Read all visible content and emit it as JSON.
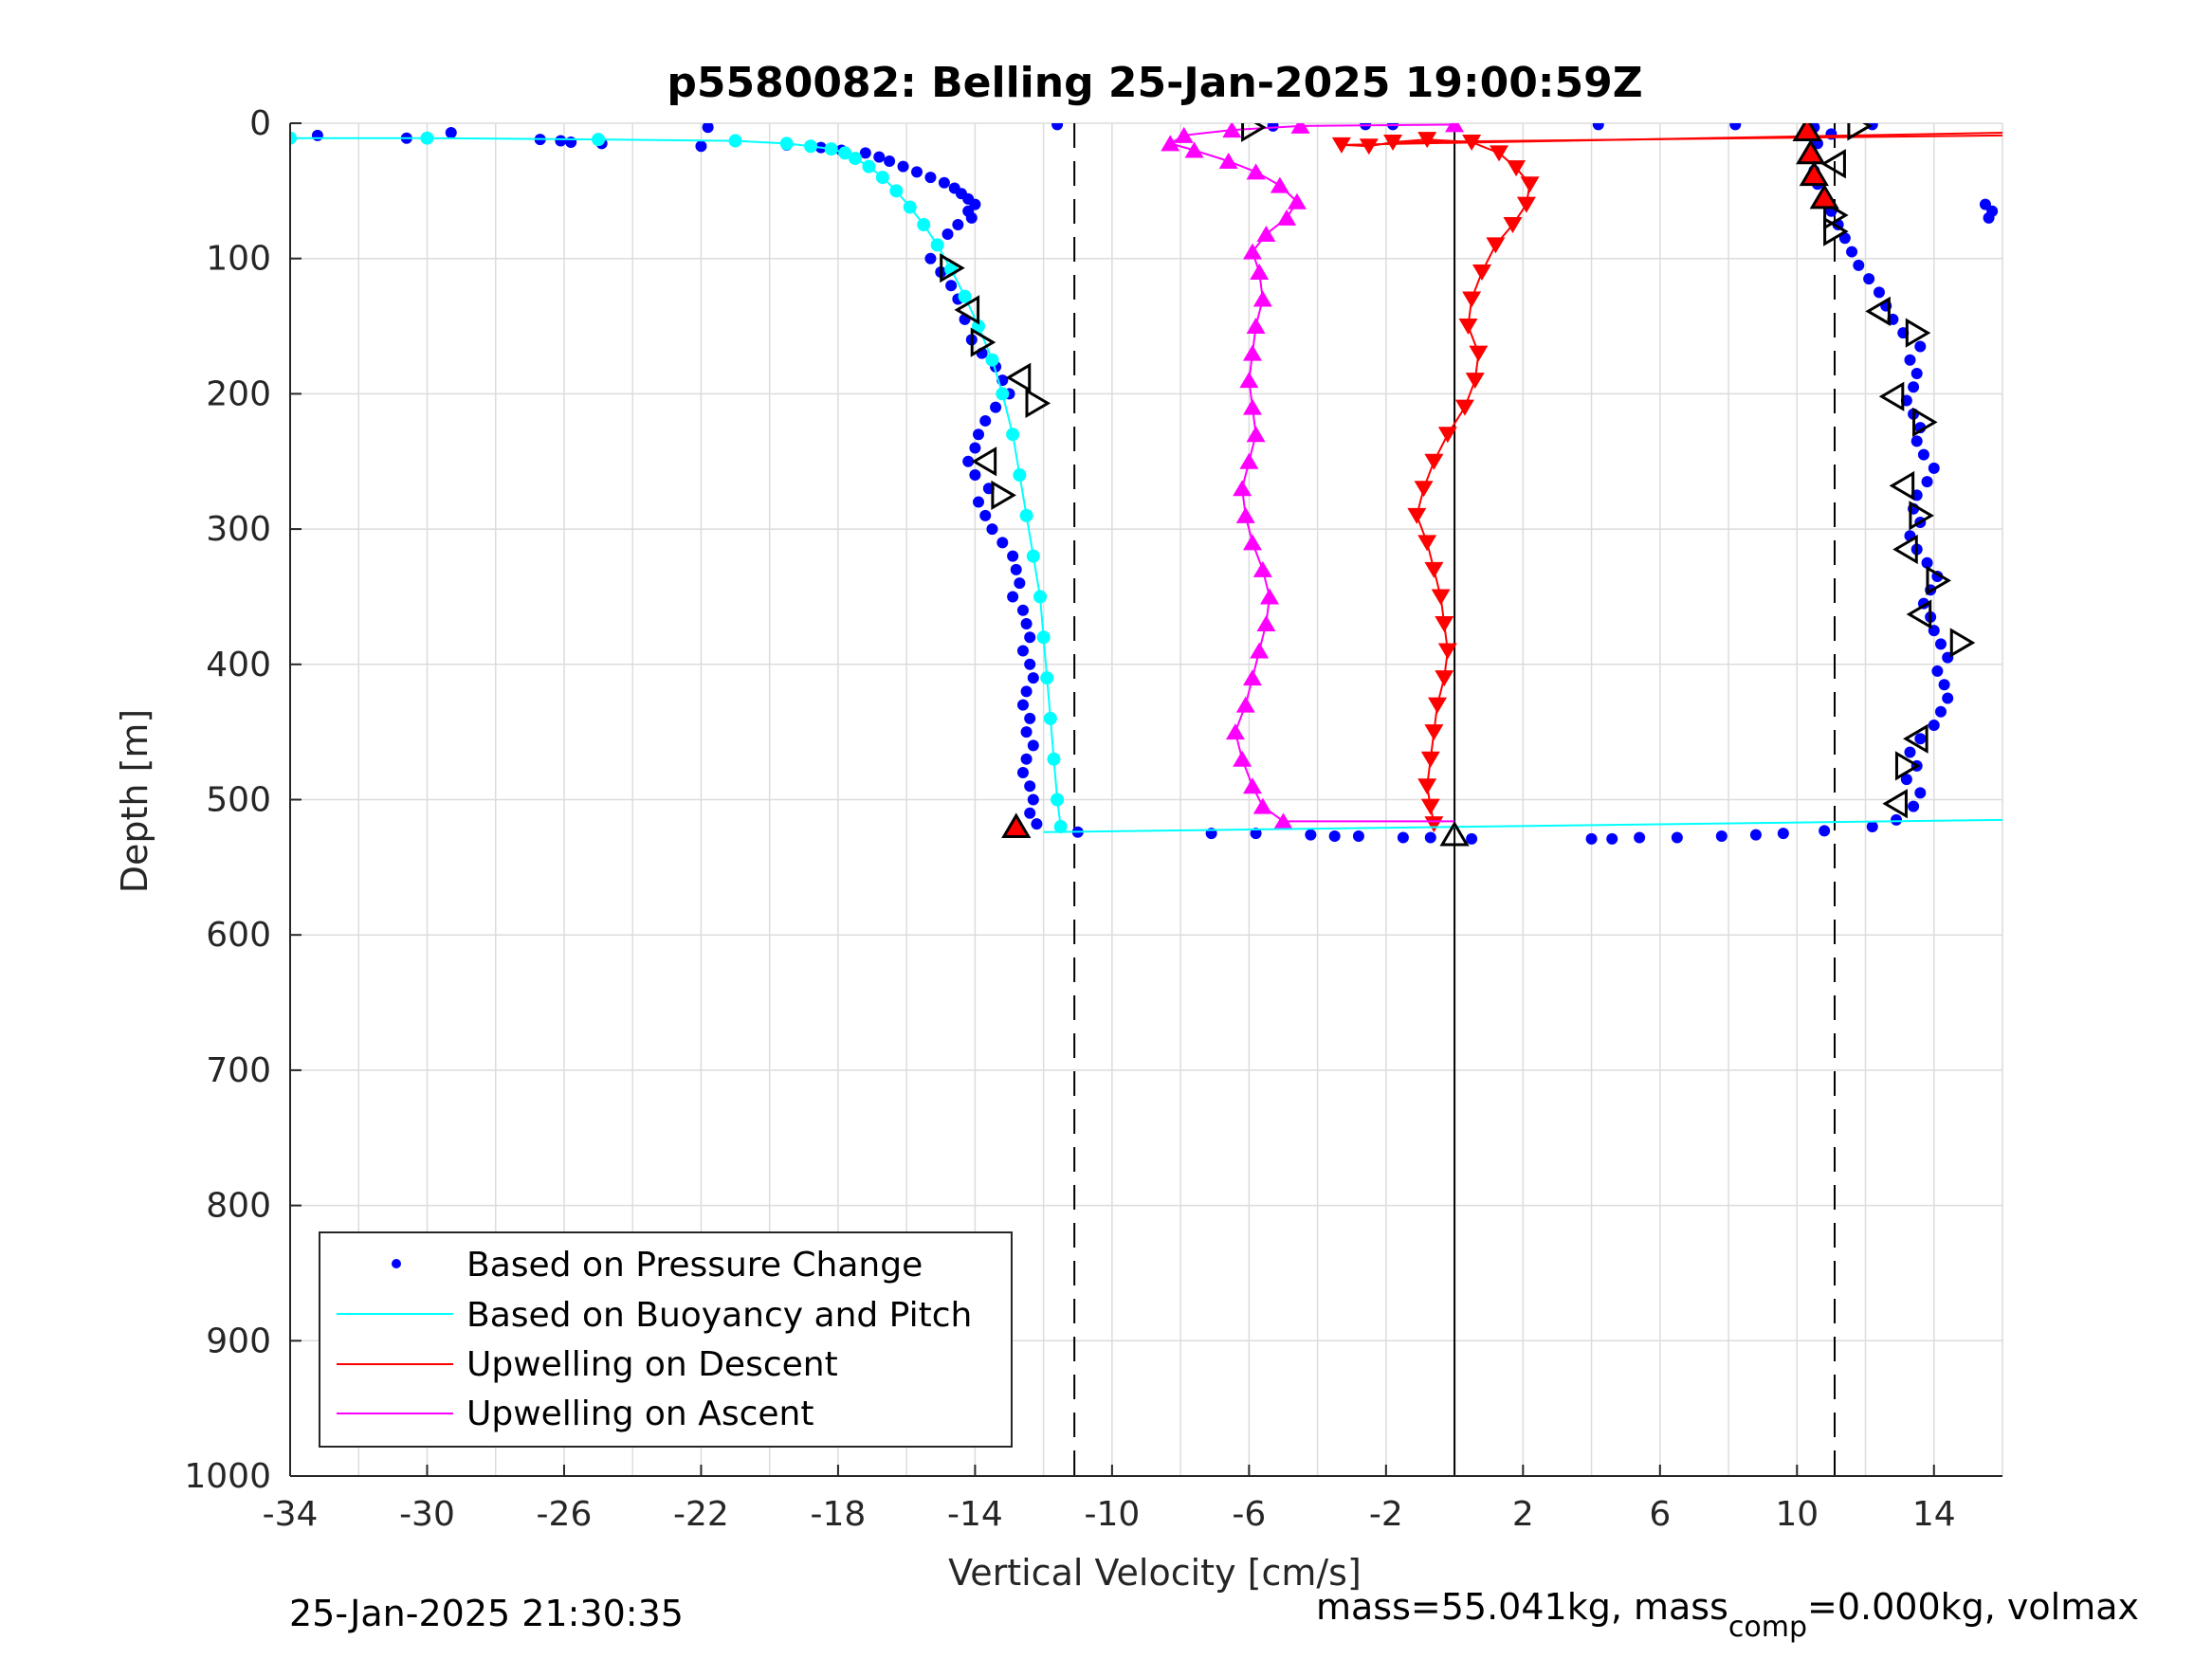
{
  "chart_data": {
    "type": "scatter",
    "title": "p5580082: Belling 25-Jan-2025 19:00:59Z",
    "xlabel": "Vertical Velocity [cm/s]",
    "ylabel": "Depth [m]",
    "xlim": [
      -34,
      16
    ],
    "ylim": [
      0,
      1000
    ],
    "y_reversed": true,
    "xticks": [
      -34,
      -30,
      -26,
      -22,
      -18,
      -14,
      -10,
      -6,
      -2,
      2,
      6,
      10,
      14
    ],
    "yticks": [
      0,
      100,
      200,
      300,
      400,
      500,
      600,
      700,
      800,
      900,
      1000
    ],
    "grid": true,
    "legend_position": "bottom-left",
    "legend": [
      {
        "label": "Based on Pressure Change",
        "color": "#0000ff",
        "marker": "dot"
      },
      {
        "label": "Based on Buoyancy and Pitch",
        "color": "#00ffff",
        "marker": "line"
      },
      {
        "label": "Upwelling on Descent",
        "color": "#ff0000",
        "marker": "line"
      },
      {
        "label": "Upwelling on Ascent",
        "color": "#ff00ff",
        "marker": "line"
      }
    ],
    "reference_lines": {
      "dashed_x": [
        -11.1,
        11.1
      ],
      "solid_x": [
        0
      ]
    },
    "series": [
      {
        "name": "Based on Pressure Change (descent)",
        "color": "#0000ff",
        "marker": "dot",
        "points": [
          [
            -33.2,
            9
          ],
          [
            -30.6,
            11
          ],
          [
            -29.3,
            7
          ],
          [
            -26.7,
            12
          ],
          [
            -26.1,
            13
          ],
          [
            -25.8,
            14
          ],
          [
            -24.9,
            15
          ],
          [
            -22.0,
            17
          ],
          [
            -21.8,
            3
          ],
          [
            -11.6,
            1
          ],
          [
            -19.5,
            16
          ],
          [
            -18.5,
            18
          ],
          [
            -17.9,
            20
          ],
          [
            -17.2,
            22
          ],
          [
            -16.8,
            25
          ],
          [
            -16.5,
            28
          ],
          [
            -16.1,
            32
          ],
          [
            -15.7,
            36
          ],
          [
            -15.3,
            40
          ],
          [
            -14.9,
            44
          ],
          [
            -14.6,
            48
          ],
          [
            -14.4,
            52
          ],
          [
            -14.2,
            56
          ],
          [
            -14.0,
            60
          ],
          [
            -14.2,
            65
          ],
          [
            -14.1,
            70
          ],
          [
            -14.5,
            75
          ],
          [
            -14.8,
            82
          ],
          [
            -15.1,
            90
          ],
          [
            -15.3,
            100
          ],
          [
            -15.0,
            110
          ],
          [
            -14.7,
            120
          ],
          [
            -14.5,
            130
          ],
          [
            -14.3,
            145
          ],
          [
            -14.1,
            160
          ],
          [
            -13.8,
            170
          ],
          [
            -13.4,
            180
          ],
          [
            -13.2,
            190
          ],
          [
            -13.0,
            200
          ],
          [
            -13.4,
            210
          ],
          [
            -13.7,
            220
          ],
          [
            -13.9,
            230
          ],
          [
            -14.0,
            240
          ],
          [
            -14.2,
            250
          ],
          [
            -14.0,
            260
          ],
          [
            -13.6,
            270
          ],
          [
            -13.9,
            280
          ],
          [
            -13.7,
            290
          ],
          [
            -13.5,
            300
          ],
          [
            -13.2,
            310
          ],
          [
            -12.9,
            320
          ],
          [
            -12.8,
            330
          ],
          [
            -12.7,
            340
          ],
          [
            -12.9,
            350
          ],
          [
            -12.6,
            360
          ],
          [
            -12.5,
            370
          ],
          [
            -12.4,
            380
          ],
          [
            -12.6,
            390
          ],
          [
            -12.4,
            400
          ],
          [
            -12.3,
            410
          ],
          [
            -12.5,
            420
          ],
          [
            -12.6,
            430
          ],
          [
            -12.4,
            440
          ],
          [
            -12.5,
            450
          ],
          [
            -12.3,
            460
          ],
          [
            -12.5,
            470
          ],
          [
            -12.6,
            480
          ],
          [
            -12.4,
            490
          ],
          [
            -12.3,
            500
          ],
          [
            -12.4,
            510
          ],
          [
            -12.2,
            518
          ],
          [
            -11.0,
            524
          ]
        ]
      },
      {
        "name": "Based on Pressure Change (ascent)",
        "color": "#0000ff",
        "marker": "dot",
        "points": [
          [
            -7.1,
            525
          ],
          [
            -5.8,
            525
          ],
          [
            -4.2,
            526
          ],
          [
            -3.5,
            527
          ],
          [
            -2.8,
            527
          ],
          [
            -1.5,
            528
          ],
          [
            -0.7,
            528
          ],
          [
            0.5,
            529
          ],
          [
            4.0,
            529
          ],
          [
            4.6,
            529
          ],
          [
            5.4,
            528
          ],
          [
            6.5,
            528
          ],
          [
            7.8,
            527
          ],
          [
            8.8,
            526
          ],
          [
            9.6,
            525
          ],
          [
            10.8,
            523
          ],
          [
            12.2,
            520
          ],
          [
            12.9,
            515
          ],
          [
            13.4,
            505
          ],
          [
            13.6,
            495
          ],
          [
            13.2,
            485
          ],
          [
            13.5,
            475
          ],
          [
            13.3,
            465
          ],
          [
            13.6,
            455
          ],
          [
            14.0,
            445
          ],
          [
            14.2,
            435
          ],
          [
            14.4,
            425
          ],
          [
            14.3,
            415
          ],
          [
            14.1,
            405
          ],
          [
            14.4,
            395
          ],
          [
            14.2,
            385
          ],
          [
            14.0,
            375
          ],
          [
            13.9,
            365
          ],
          [
            13.7,
            355
          ],
          [
            13.9,
            345
          ],
          [
            14.1,
            335
          ],
          [
            13.8,
            325
          ],
          [
            13.5,
            315
          ],
          [
            13.3,
            305
          ],
          [
            13.6,
            295
          ],
          [
            13.4,
            285
          ],
          [
            13.5,
            275
          ],
          [
            13.8,
            265
          ],
          [
            14.0,
            255
          ],
          [
            13.7,
            245
          ],
          [
            13.5,
            235
          ],
          [
            13.6,
            225
          ],
          [
            13.4,
            215
          ],
          [
            13.2,
            205
          ],
          [
            13.4,
            195
          ],
          [
            13.5,
            185
          ],
          [
            13.3,
            175
          ],
          [
            13.6,
            165
          ],
          [
            13.1,
            155
          ],
          [
            12.8,
            145
          ],
          [
            12.6,
            135
          ],
          [
            12.4,
            125
          ],
          [
            12.1,
            115
          ],
          [
            11.8,
            105
          ],
          [
            11.6,
            95
          ],
          [
            11.4,
            85
          ],
          [
            11.2,
            75
          ],
          [
            11.0,
            65
          ],
          [
            10.8,
            55
          ],
          [
            10.6,
            45
          ],
          [
            10.5,
            35
          ],
          [
            10.4,
            25
          ],
          [
            10.6,
            15
          ],
          [
            11.0,
            8
          ],
          [
            10.5,
            3
          ],
          [
            12.2,
            1
          ],
          [
            8.2,
            1
          ],
          [
            4.2,
            1
          ],
          [
            -1.8,
            1
          ],
          [
            -2.6,
            1
          ],
          [
            -5.3,
            2
          ],
          [
            15.5,
            60
          ],
          [
            15.7,
            65
          ],
          [
            15.6,
            70
          ]
        ]
      },
      {
        "name": "Based on Buoyancy and Pitch",
        "color": "#00ffff",
        "marker": "dot",
        "points": [
          [
            -34,
            11
          ],
          [
            -30,
            11
          ],
          [
            -25,
            12
          ],
          [
            -21,
            13
          ],
          [
            -19.5,
            15
          ],
          [
            -18.8,
            17
          ],
          [
            -18.2,
            19
          ],
          [
            -17.8,
            22
          ],
          [
            -17.5,
            26
          ],
          [
            -17.1,
            32
          ],
          [
            -16.7,
            40
          ],
          [
            -16.3,
            50
          ],
          [
            -15.9,
            62
          ],
          [
            -15.5,
            75
          ],
          [
            -15.1,
            90
          ],
          [
            -14.7,
            108
          ],
          [
            -14.3,
            128
          ],
          [
            -13.9,
            150
          ],
          [
            -13.5,
            175
          ],
          [
            -13.2,
            200
          ],
          [
            -12.9,
            230
          ],
          [
            -12.7,
            260
          ],
          [
            -12.5,
            290
          ],
          [
            -12.3,
            320
          ],
          [
            -12.1,
            350
          ],
          [
            -12.0,
            380
          ],
          [
            -11.9,
            410
          ],
          [
            -11.8,
            440
          ],
          [
            -11.7,
            470
          ],
          [
            -11.6,
            500
          ],
          [
            -11.5,
            520
          ]
        ]
      },
      {
        "name": "Upwelling on Descent",
        "color": "#ff0000",
        "marker": "triangle-down",
        "points": [
          [
            -3.3,
            16
          ],
          [
            -2.5,
            17
          ],
          [
            -1.8,
            14
          ],
          [
            -0.8,
            12
          ],
          [
            0.5,
            14
          ],
          [
            1.3,
            22
          ],
          [
            1.8,
            33
          ],
          [
            2.2,
            45
          ],
          [
            2.1,
            60
          ],
          [
            1.7,
            75
          ],
          [
            1.2,
            90
          ],
          [
            0.8,
            110
          ],
          [
            0.5,
            130
          ],
          [
            0.4,
            150
          ],
          [
            0.7,
            170
          ],
          [
            0.6,
            190
          ],
          [
            0.3,
            210
          ],
          [
            -0.2,
            230
          ],
          [
            -0.6,
            250
          ],
          [
            -0.9,
            270
          ],
          [
            -1.1,
            290
          ],
          [
            -0.8,
            310
          ],
          [
            -0.6,
            330
          ],
          [
            -0.4,
            350
          ],
          [
            -0.3,
            370
          ],
          [
            -0.2,
            390
          ],
          [
            -0.3,
            410
          ],
          [
            -0.5,
            430
          ],
          [
            -0.6,
            450
          ],
          [
            -0.7,
            470
          ],
          [
            -0.8,
            490
          ],
          [
            -0.7,
            505
          ],
          [
            -0.6,
            518
          ]
        ]
      },
      {
        "name": "Upwelling on Ascent",
        "color": "#ff00ff",
        "marker": "triangle-up",
        "points": [
          [
            -5.0,
            516
          ],
          [
            -5.6,
            505
          ],
          [
            -5.9,
            490
          ],
          [
            -6.2,
            470
          ],
          [
            -6.4,
            450
          ],
          [
            -6.1,
            430
          ],
          [
            -5.9,
            410
          ],
          [
            -5.7,
            390
          ],
          [
            -5.5,
            370
          ],
          [
            -5.4,
            350
          ],
          [
            -5.6,
            330
          ],
          [
            -5.9,
            310
          ],
          [
            -6.1,
            290
          ],
          [
            -6.2,
            270
          ],
          [
            -6.0,
            250
          ],
          [
            -5.8,
            230
          ],
          [
            -5.9,
            210
          ],
          [
            -6.0,
            190
          ],
          [
            -5.9,
            170
          ],
          [
            -5.8,
            150
          ],
          [
            -5.6,
            130
          ],
          [
            -5.7,
            110
          ],
          [
            -5.9,
            95
          ],
          [
            -5.5,
            82
          ],
          [
            -4.9,
            70
          ],
          [
            -4.6,
            58
          ],
          [
            -5.1,
            46
          ],
          [
            -5.8,
            36
          ],
          [
            -6.6,
            28
          ],
          [
            -7.6,
            20
          ],
          [
            -8.3,
            15
          ],
          [
            -7.9,
            9
          ],
          [
            -6.5,
            5
          ],
          [
            -4.5,
            2
          ],
          [
            0.0,
            1
          ]
        ]
      }
    ],
    "flag_markers": [
      {
        "shape": "triangle-right",
        "x": -14.7,
        "y": 107
      },
      {
        "shape": "triangle-left",
        "x": -14.2,
        "y": 138
      },
      {
        "shape": "triangle-right",
        "x": -13.8,
        "y": 162
      },
      {
        "shape": "triangle-left",
        "x": -12.7,
        "y": 188
      },
      {
        "shape": "triangle-right",
        "x": -12.2,
        "y": 207
      },
      {
        "shape": "triangle-left",
        "x": -13.7,
        "y": 250
      },
      {
        "shape": "triangle-right",
        "x": -13.2,
        "y": 275
      },
      {
        "shape": "triangle-right",
        "x": -5.9,
        "y": 3
      },
      {
        "shape": "triangle-right",
        "x": 11.8,
        "y": 2
      },
      {
        "shape": "triangle-left",
        "x": 11.1,
        "y": 30
      },
      {
        "shape": "triangle-right",
        "x": 11.1,
        "y": 68
      },
      {
        "shape": "triangle-right",
        "x": 11.1,
        "y": 80
      },
      {
        "shape": "triangle-left",
        "x": 12.4,
        "y": 139
      },
      {
        "shape": "triangle-right",
        "x": 13.5,
        "y": 155
      },
      {
        "shape": "triangle-left",
        "x": 12.8,
        "y": 202
      },
      {
        "shape": "triangle-right",
        "x": 13.7,
        "y": 221
      },
      {
        "shape": "triangle-left",
        "x": 13.1,
        "y": 268
      },
      {
        "shape": "triangle-right",
        "x": 13.6,
        "y": 290
      },
      {
        "shape": "triangle-left",
        "x": 13.2,
        "y": 315
      },
      {
        "shape": "triangle-right",
        "x": 14.1,
        "y": 338
      },
      {
        "shape": "triangle-left",
        "x": 13.6,
        "y": 363
      },
      {
        "shape": "triangle-right",
        "x": 14.8,
        "y": 384
      },
      {
        "shape": "triangle-left",
        "x": 13.5,
        "y": 455
      },
      {
        "shape": "triangle-right",
        "x": 13.2,
        "y": 475
      },
      {
        "shape": "triangle-left",
        "x": 12.9,
        "y": 503
      },
      {
        "shape": "triangle-up",
        "x": 0.0,
        "y": 526
      },
      {
        "shape": "triangle-up",
        "x": -12.8,
        "y": 520
      },
      {
        "shape": "triangle-up",
        "x": 10.3,
        "y": 5
      },
      {
        "shape": "triangle-up",
        "x": 10.4,
        "y": 22
      },
      {
        "shape": "triangle-up",
        "x": 10.5,
        "y": 38
      },
      {
        "shape": "triangle-up",
        "x": 10.8,
        "y": 55
      }
    ]
  },
  "footer": {
    "timestamp": "25-Jan-2025 21:30:35",
    "mass_text_pre": "mass=55.041kg, mass",
    "mass_text_sub": "comp",
    "mass_text_post": "=0.000kg, volmax"
  },
  "colors": {
    "pressure": "#0000ff",
    "buoyancy": "#00ffff",
    "descent": "#ff0000",
    "ascent": "#ff00ff",
    "axis": "#262626",
    "grid": "#dcdcdc"
  }
}
